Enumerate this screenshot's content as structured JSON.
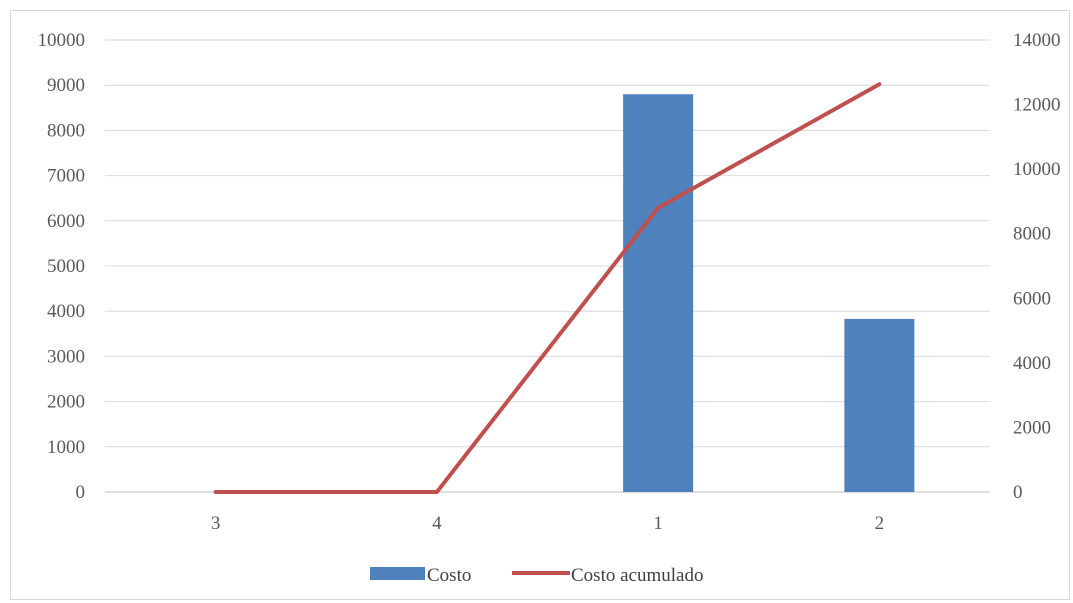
{
  "chart_data": {
    "type": "bar",
    "categories": [
      "3",
      "4",
      "1",
      "2"
    ],
    "series": [
      {
        "name": "Costo",
        "type": "bar",
        "axis": "left",
        "color": "#4f81bd",
        "values": [
          0,
          0,
          8800,
          3830
        ]
      },
      {
        "name": "Costo acumulado",
        "type": "line",
        "axis": "right",
        "color": "#c0504d",
        "values": [
          0,
          0,
          8800,
          12630
        ]
      }
    ],
    "ylim": [
      0,
      10000
    ],
    "yticks": [
      "0",
      "1000",
      "2000",
      "3000",
      "4000",
      "5000",
      "6000",
      "7000",
      "8000",
      "9000",
      "10000"
    ],
    "y2lim": [
      0,
      14000
    ],
    "y2ticks": [
      "0",
      "2000",
      "4000",
      "6000",
      "8000",
      "10000",
      "12000",
      "14000"
    ],
    "grid": true,
    "legend": "bottom",
    "title": "",
    "xlabel": "",
    "ylabel": "",
    "y2label": ""
  }
}
